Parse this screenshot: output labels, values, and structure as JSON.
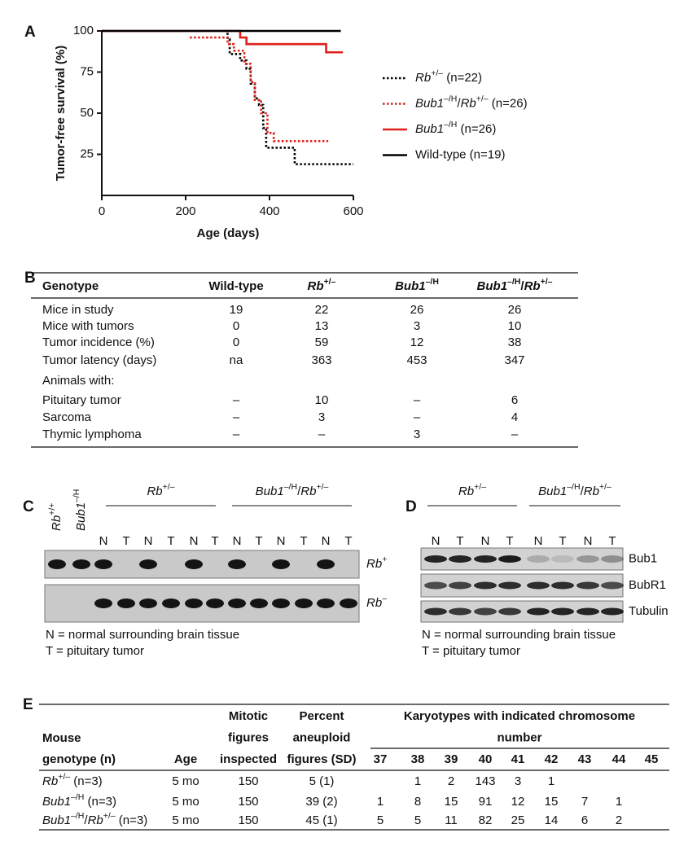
{
  "figure_labels": [
    "A",
    "B",
    "C",
    "D",
    "E"
  ],
  "chart_data": {
    "type": "line",
    "step": true,
    "xlabel": "Age (days)",
    "ylabel": "Tumor-free survival (%)",
    "xlim": [
      0,
      600
    ],
    "ylim": [
      0,
      100
    ],
    "xticks": [
      0,
      200,
      400,
      600
    ],
    "yticks": [
      25,
      50,
      75,
      100
    ],
    "series": [
      {
        "name": [
          {
            "text": "Rb",
            "style": "italic"
          },
          {
            "text": "+/–",
            "style": "sup"
          },
          {
            "text": " (n=22)"
          }
        ],
        "color": "#000000",
        "dash": "dotted",
        "x": [
          295,
          300,
          305,
          330,
          345,
          355,
          365,
          375,
          385,
          392,
          460,
          600
        ],
        "values": [
          100,
          95,
          86,
          82,
          77,
          68,
          59,
          55,
          41,
          29,
          19,
          19
        ]
      },
      {
        "name": [
          {
            "text": "Bub1",
            "style": "italic"
          },
          {
            "text": "–/H",
            "style": "sup"
          },
          {
            "text": "/"
          },
          {
            "text": "Rb",
            "style": "italic"
          },
          {
            "text": "+/–",
            "style": "sup"
          },
          {
            "text": " (n=26)"
          }
        ],
        "color": "#e0201b",
        "dash": "dotted",
        "x": [
          210,
          300,
          315,
          340,
          355,
          365,
          380,
          395,
          410,
          540
        ],
        "values": [
          96,
          92,
          88,
          80,
          69,
          58,
          50,
          38,
          33,
          33
        ]
      },
      {
        "name": [
          {
            "text": "Bub1",
            "style": "italic"
          },
          {
            "text": "–/H",
            "style": "sup"
          },
          {
            "text": " (n=26)"
          }
        ],
        "color": "#e0201b",
        "dash": "solid",
        "x": [
          0,
          330,
          345,
          535,
          575
        ],
        "values": [
          100,
          96,
          92,
          87,
          87
        ]
      },
      {
        "name": [
          {
            "text": "Wild-type (n=19)"
          }
        ],
        "color": "#000000",
        "dash": "solid",
        "x": [
          0,
          570
        ],
        "values": [
          100,
          100
        ]
      }
    ]
  },
  "table_b": {
    "header": [
      [
        {
          "text": "Genotype"
        }
      ],
      [
        {
          "text": "Wild-type"
        }
      ],
      [
        {
          "text": "Rb",
          "style": "italic"
        },
        {
          "text": "+/–",
          "style": "sup"
        }
      ],
      [
        {
          "text": "Bub1",
          "style": "italic"
        },
        {
          "text": "–/H",
          "style": "sup"
        }
      ],
      [
        {
          "text": "Bub1",
          "style": "italic"
        },
        {
          "text": "–/H",
          "style": "sup"
        },
        {
          "text": "/"
        },
        {
          "text": "Rb",
          "style": "italic"
        },
        {
          "text": "+/–",
          "style": "sup"
        }
      ]
    ],
    "rows": [
      [
        "Mice in study",
        19,
        22,
        26,
        26
      ],
      [
        "Mice with tumors",
        0,
        13,
        3,
        10
      ],
      [
        "Tumor incidence (%)",
        0,
        59,
        12,
        38
      ],
      [
        "Tumor latency (days)",
        "na",
        363,
        453,
        347
      ],
      [
        "Animals with:"
      ],
      [
        "Pituitary tumor",
        "–",
        10,
        "–",
        6
      ],
      [
        "Sarcoma",
        "–",
        3,
        "–",
        4
      ],
      [
        "Thymic lymphoma",
        "–",
        "–",
        3,
        "–"
      ]
    ]
  },
  "gel_c": {
    "lane_headers": [
      [
        {
          "text": "Rb",
          "style": "italic"
        },
        {
          "text": "+/+",
          "style": "sup"
        }
      ],
      [
        {
          "text": "Bub1",
          "style": "italic"
        },
        {
          "text": "–/H",
          "style": "sup"
        }
      ]
    ],
    "groups": [
      {
        "label": [
          {
            "text": "Rb",
            "style": "italic"
          },
          {
            "text": "+/–",
            "style": "sup"
          }
        ],
        "lanes": [
          "N",
          "T",
          "N",
          "T",
          "N",
          "T"
        ]
      },
      {
        "label": [
          {
            "text": "Bub1",
            "style": "italic"
          },
          {
            "text": "–/H",
            "style": "sup"
          },
          {
            "text": "/"
          },
          {
            "text": "Rb",
            "style": "italic"
          },
          {
            "text": "+/–",
            "style": "sup"
          }
        ],
        "lanes": [
          "N",
          "T",
          "N",
          "T",
          "N",
          "T"
        ]
      }
    ],
    "band_labels": [
      [
        {
          "text": "Rb",
          "style": "italic"
        },
        {
          "text": "+",
          "style": "sup"
        }
      ],
      [
        {
          "text": "Rb",
          "style": "italic"
        },
        {
          "text": "–",
          "style": "sup"
        }
      ]
    ],
    "legend": [
      "N = normal surrounding brain tissue",
      "T = pituitary tumor"
    ]
  },
  "blot_d": {
    "groups": [
      {
        "label": [
          {
            "text": "Rb",
            "style": "italic"
          },
          {
            "text": "+/–",
            "style": "sup"
          }
        ],
        "lanes": [
          "N",
          "T",
          "N",
          "T"
        ]
      },
      {
        "label": [
          {
            "text": "Bub1",
            "style": "italic"
          },
          {
            "text": "–/H",
            "style": "sup"
          },
          {
            "text": "/"
          },
          {
            "text": "Rb",
            "style": "italic"
          },
          {
            "text": "+/–",
            "style": "sup"
          }
        ],
        "lanes": [
          "N",
          "T",
          "N",
          "T"
        ]
      }
    ],
    "band_labels": [
      "Bub1",
      "BubR1",
      "Tubulin"
    ],
    "legend": [
      "N = normal surrounding brain tissue",
      "T = pituitary tumor"
    ]
  },
  "table_e": {
    "header": {
      "genotype": [
        "Mouse",
        "genotype (n)"
      ],
      "age": "Age",
      "mitotic": [
        "Mitotic",
        "figures",
        "inspected"
      ],
      "percent": [
        "Percent",
        "aneuploid",
        "figures (SD)"
      ],
      "karyotypes": [
        "Karyotypes with indicated chromosome",
        "number"
      ],
      "chromosomes": [
        37,
        38,
        39,
        40,
        41,
        42,
        43,
        44,
        45
      ]
    },
    "rows": [
      {
        "genotype": [
          {
            "text": "Rb",
            "style": "italic"
          },
          {
            "text": "+/–",
            "style": "sup"
          },
          {
            "text": "  (n=3)"
          }
        ],
        "age": "5 mo",
        "mitotic": 150,
        "percent": "5 (1)",
        "karyotypes": [
          null,
          1,
          2,
          143,
          3,
          1,
          null,
          null,
          null
        ]
      },
      {
        "genotype": [
          {
            "text": "Bub1",
            "style": "italic"
          },
          {
            "text": "–/H",
            "style": "sup"
          },
          {
            "text": " (n=3)"
          }
        ],
        "age": "5 mo",
        "mitotic": 150,
        "percent": "39 (2)",
        "karyotypes": [
          1,
          8,
          15,
          91,
          12,
          15,
          7,
          1,
          null
        ]
      },
      {
        "genotype": [
          {
            "text": "Bub1",
            "style": "italic"
          },
          {
            "text": "–/H",
            "style": "sup"
          },
          {
            "text": "/"
          },
          {
            "text": "Rb",
            "style": "italic"
          },
          {
            "text": "+/–",
            "style": "sup"
          },
          {
            "text": " (n=3)"
          }
        ],
        "age": "5 mo",
        "mitotic": 150,
        "percent": "45 (1)",
        "karyotypes": [
          5,
          5,
          11,
          82,
          25,
          14,
          6,
          2,
          null
        ]
      }
    ]
  }
}
